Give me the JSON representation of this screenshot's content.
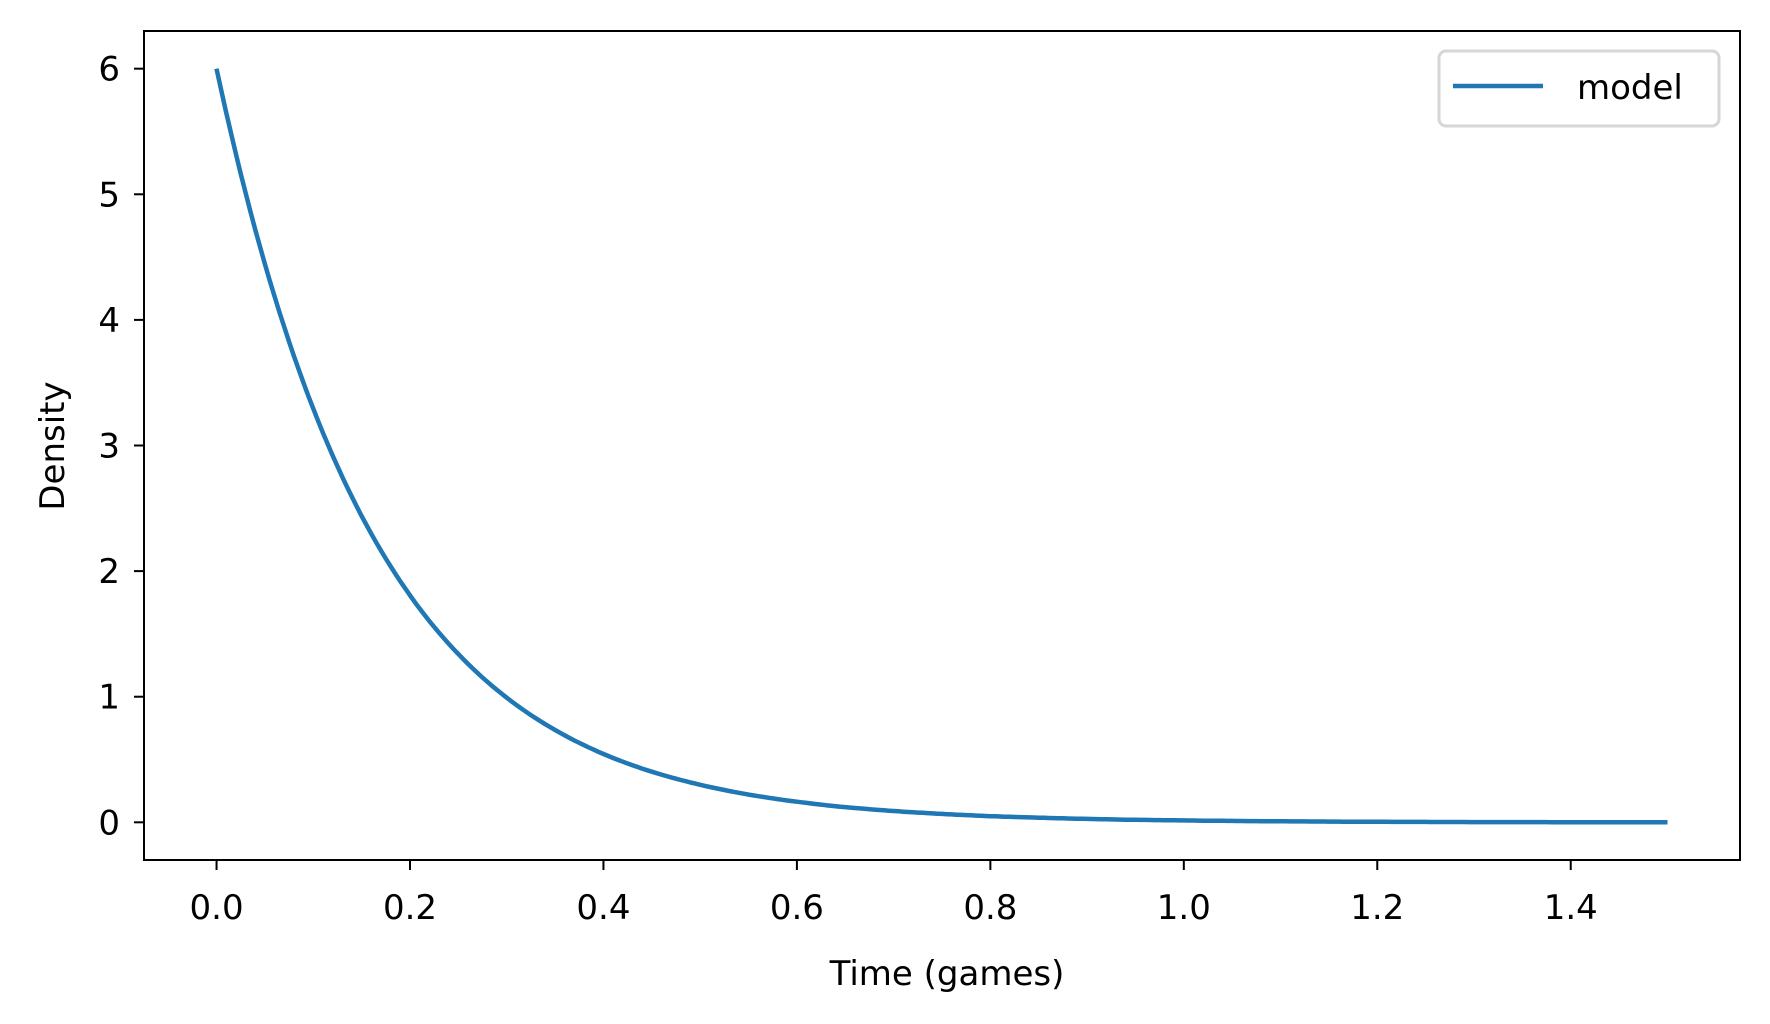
{
  "chart_data": {
    "type": "line",
    "title": "",
    "xlabel": "Time (games)",
    "ylabel": "Density",
    "xlim": [
      -0.075,
      1.575
    ],
    "ylim": [
      -0.3,
      6.3
    ],
    "xticks": [
      0.0,
      0.2,
      0.4,
      0.6,
      0.8,
      1.0,
      1.2,
      1.4
    ],
    "xtick_labels": [
      "0.0",
      "0.2",
      "0.4",
      "0.6",
      "0.8",
      "1.0",
      "1.2",
      "1.4"
    ],
    "yticks": [
      0,
      1,
      2,
      3,
      4,
      5,
      6
    ],
    "ytick_labels": [
      "0",
      "1",
      "2",
      "3",
      "4",
      "5",
      "6"
    ],
    "grid": false,
    "legend": {
      "position": "upper right",
      "entries": [
        "model"
      ]
    },
    "series": [
      {
        "name": "model",
        "color": "#1f77b4",
        "x": [
          0.0,
          0.05,
          0.1,
          0.15,
          0.2,
          0.25,
          0.3,
          0.35,
          0.4,
          0.45,
          0.5,
          0.55,
          0.6,
          0.65,
          0.7,
          0.75,
          0.8,
          0.85,
          0.9,
          0.95,
          1.0,
          1.05,
          1.1,
          1.15,
          1.2,
          1.25,
          1.3,
          1.35,
          1.4,
          1.45,
          1.5
        ],
        "y": [
          6.0,
          4.445,
          3.293,
          2.439,
          1.807,
          1.339,
          0.992,
          0.735,
          0.544,
          0.403,
          0.299,
          0.221,
          0.164,
          0.121,
          0.09,
          0.067,
          0.049,
          0.037,
          0.027,
          0.02,
          0.015,
          0.011,
          0.008,
          0.006,
          0.004,
          0.003,
          0.002,
          0.002,
          0.001,
          0.001,
          0.001
        ]
      }
    ]
  },
  "colors": {
    "series": "#1f77b4",
    "axis": "#000000",
    "legend_border": "#d6d6d6",
    "background": "#ffffff"
  }
}
